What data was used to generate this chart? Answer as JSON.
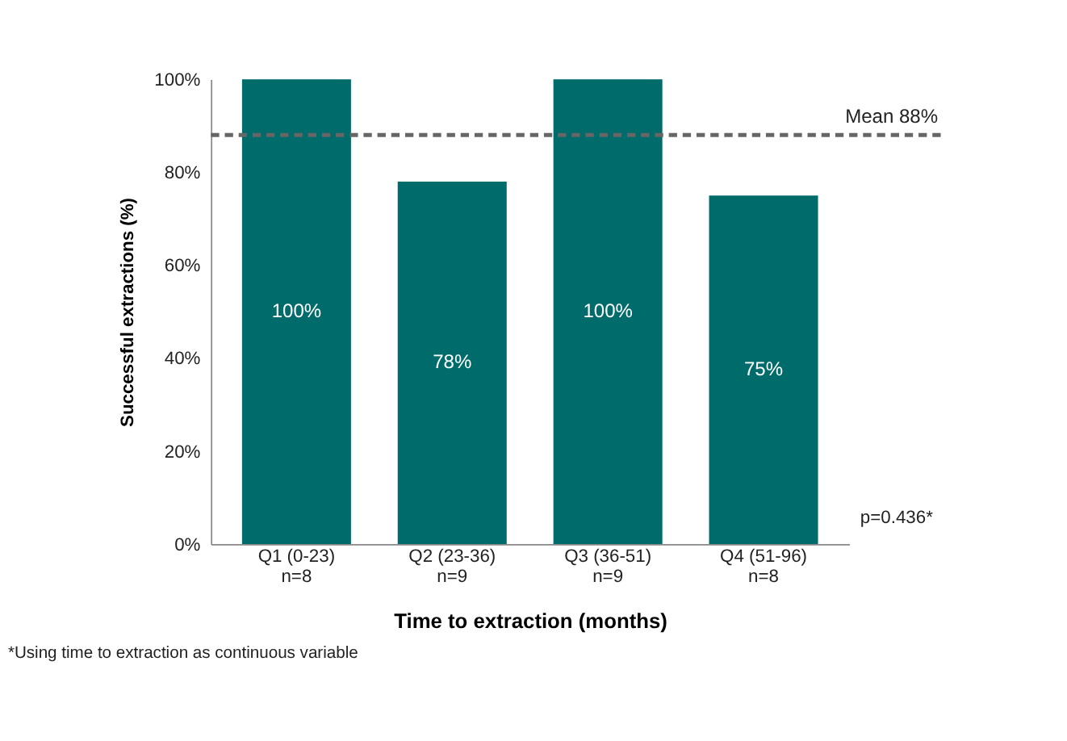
{
  "chart_data": {
    "type": "bar",
    "xlabel": "Time to extraction (months)",
    "ylabel": "Successful extractions (%)",
    "categories": [
      "Q1 (0-23)\nn=8",
      "Q2 (23-36)\nn=9",
      "Q3 (36-51)\nn=9",
      "Q4 (51-96)\nn=8"
    ],
    "values": [
      100,
      78,
      100,
      75
    ],
    "color": "#006b6b",
    "value_labels": [
      "100%",
      "78%",
      "100%",
      "75%"
    ],
    "ylim": [
      0,
      100
    ],
    "yticks": [
      {
        "value": 0,
        "label": "0%"
      },
      {
        "value": 20,
        "label": "20%"
      },
      {
        "value": 40,
        "label": "40%"
      },
      {
        "value": 60,
        "label": "60%"
      },
      {
        "value": 80,
        "label": "80%"
      },
      {
        "value": 100,
        "label": "100%"
      }
    ],
    "ref_lines": [
      {
        "axis": "y",
        "value": 88,
        "label": "Mean 88%",
        "color": "#666666",
        "line_style": "dashed"
      }
    ],
    "annotations": [
      "p=0.436*",
      "*Using time to extraction as continuous variable"
    ],
    "grid": false
  }
}
